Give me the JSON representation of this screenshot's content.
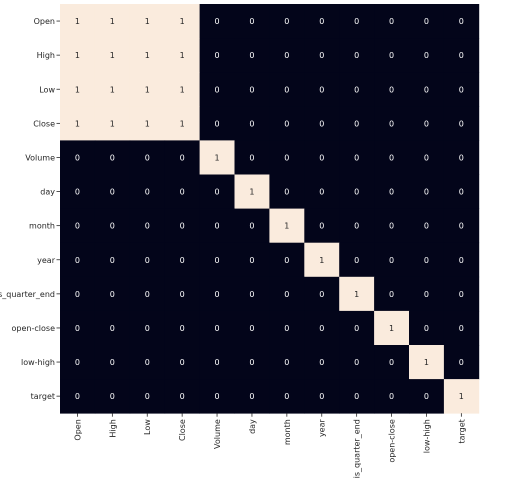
{
  "chart_data": {
    "type": "heatmap",
    "x_categories": [
      "Open",
      "High",
      "Low",
      "Close",
      "Volume",
      "day",
      "month",
      "year",
      "is_quarter_end",
      "open-close",
      "low-high",
      "target"
    ],
    "y_categories": [
      "Open",
      "High",
      "Low",
      "Close",
      "Volume",
      "day",
      "month",
      "year",
      "is_quarter_end",
      "open-close",
      "low-high",
      "target"
    ],
    "values": [
      [
        1,
        1,
        1,
        1,
        0,
        0,
        0,
        0,
        0,
        0,
        0,
        0
      ],
      [
        1,
        1,
        1,
        1,
        0,
        0,
        0,
        0,
        0,
        0,
        0,
        0
      ],
      [
        1,
        1,
        1,
        1,
        0,
        0,
        0,
        0,
        0,
        0,
        0,
        0
      ],
      [
        1,
        1,
        1,
        1,
        0,
        0,
        0,
        0,
        0,
        0,
        0,
        0
      ],
      [
        0,
        0,
        0,
        0,
        1,
        0,
        0,
        0,
        0,
        0,
        0,
        0
      ],
      [
        0,
        0,
        0,
        0,
        0,
        1,
        0,
        0,
        0,
        0,
        0,
        0
      ],
      [
        0,
        0,
        0,
        0,
        0,
        0,
        1,
        0,
        0,
        0,
        0,
        0
      ],
      [
        0,
        0,
        0,
        0,
        0,
        0,
        0,
        1,
        0,
        0,
        0,
        0
      ],
      [
        0,
        0,
        0,
        0,
        0,
        0,
        0,
        0,
        1,
        0,
        0,
        0
      ],
      [
        0,
        0,
        0,
        0,
        0,
        0,
        0,
        0,
        0,
        1,
        0,
        0
      ],
      [
        0,
        0,
        0,
        0,
        0,
        0,
        0,
        0,
        0,
        0,
        1,
        0
      ],
      [
        0,
        0,
        0,
        0,
        0,
        0,
        0,
        0,
        0,
        0,
        0,
        1
      ]
    ],
    "annotated": true,
    "colorbar": false,
    "colors": {
      "high": "#faebdd",
      "low": "#03051a",
      "text_on_high": "#262626",
      "text_on_low": "#ffffff"
    }
  }
}
